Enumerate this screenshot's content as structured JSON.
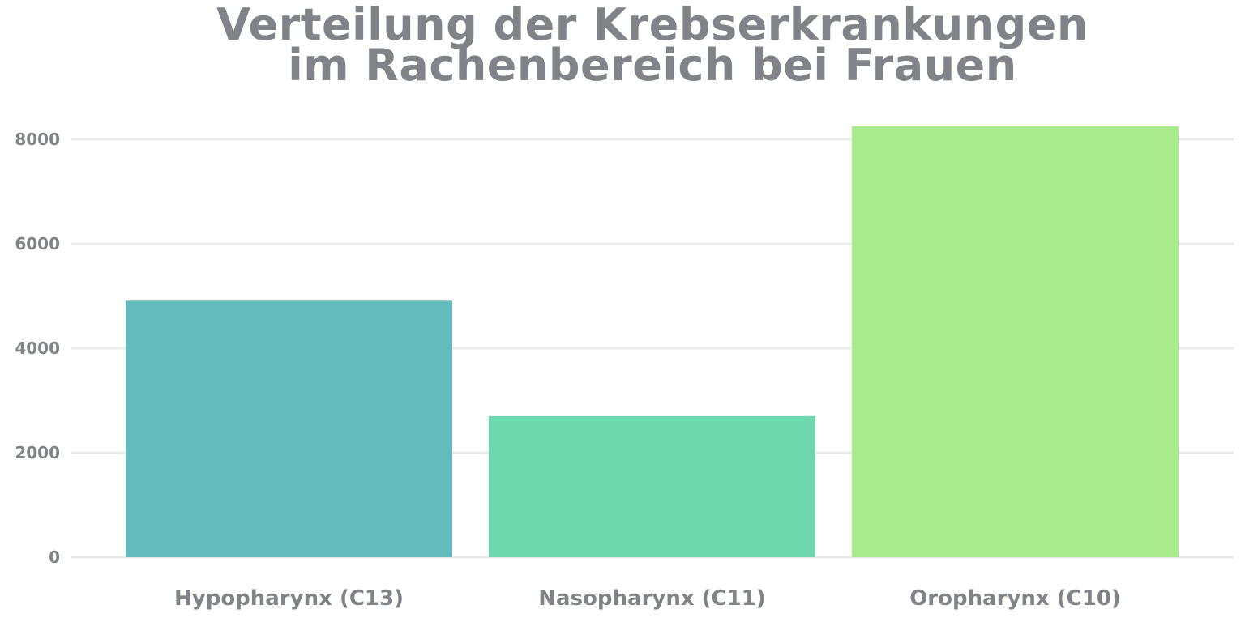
{
  "chart_data": {
    "type": "bar",
    "title_lines": [
      "Verteilung der Krebserkrankungen",
      "im Rachenbereich bei Frauen"
    ],
    "categories": [
      "Hypopharynx (C13)",
      "Nasopharynx (C11)",
      "Oropharynx (C10)"
    ],
    "values": [
      4910,
      2700,
      8250
    ],
    "colors": [
      "#64bbbb",
      "#6fd7ae",
      "#aaeb8e"
    ],
    "xlabel": "",
    "ylabel": "",
    "ylim": [
      0,
      8400
    ],
    "yticks": [
      0,
      2000,
      4000,
      6000,
      8000
    ],
    "grid": true,
    "grid_color": "#ebebeb",
    "text_color": "#808387"
  }
}
